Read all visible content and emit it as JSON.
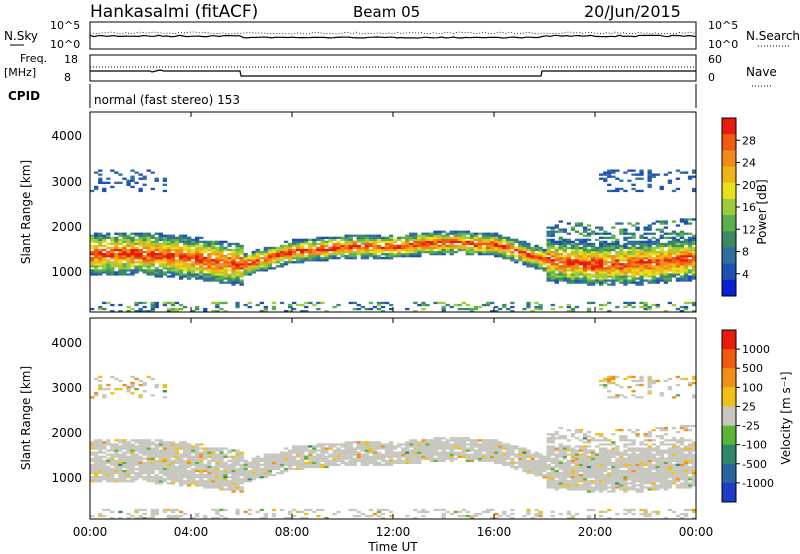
{
  "header": {
    "radar": "Hankasalmi (fitACF)",
    "beam": "Beam 05",
    "date": "20/Jun/2015"
  },
  "top_panels": {
    "nsky_label": "N.Sky",
    "nsky_ticks": [
      "10^5",
      "10^0"
    ],
    "nsearch_label": "N.Search",
    "nsearch_ticks": [
      "10^5",
      "10^0"
    ],
    "freq_label": "Freq.",
    "freq_unit": "[MHz]",
    "freq_ticks": [
      "18",
      "8"
    ],
    "nave_label": "Nave",
    "nave_ticks": [
      "60",
      "0"
    ],
    "cpid_label": "CPID",
    "cpid_text": "normal (fast stereo) 153"
  },
  "power_panel": {
    "ylabel": "Slant Range [km]",
    "yticks": [
      "4000",
      "3000",
      "2000",
      "1000"
    ],
    "colorbar_label": "Power [dB]",
    "colorbar_ticks": [
      "28",
      "24",
      "20",
      "16",
      "12",
      "8",
      "4"
    ],
    "colors": [
      "#0a1ed6",
      "#1e4fb4",
      "#2f6e9e",
      "#3c8a62",
      "#5ab04c",
      "#9ccc3c",
      "#e8e018",
      "#f0b418",
      "#f08a18",
      "#f05a10",
      "#e81a0a"
    ]
  },
  "velocity_panel": {
    "ylabel": "Slant Range [km]",
    "yticks": [
      "4000",
      "3000",
      "2000",
      "1000"
    ],
    "colorbar_label": "Velocity [m s⁻¹]",
    "colorbar_ticks": [
      "1000",
      "500",
      "100",
      "25",
      "-25",
      "-100",
      "-500",
      "-1000"
    ],
    "colors": [
      "#1e3cc8",
      "#2a64a0",
      "#30886a",
      "#5ab438",
      "#c8c8c0",
      "#f0c018",
      "#f09018",
      "#f05a10",
      "#e81a0a"
    ]
  },
  "xaxis": {
    "ticks": [
      "00:00",
      "04:00",
      "08:00",
      "12:00",
      "16:00",
      "20:00",
      "00:00"
    ],
    "label": "Time UT"
  },
  "chart_data": [
    {
      "type": "heatmap",
      "title": "Power",
      "xlabel": "Time UT",
      "ylabel": "Slant Range [km]",
      "x_range": [
        "00:00",
        "24:00"
      ],
      "ylim": [
        180,
        4600
      ],
      "colorbar": {
        "label": "Power [dB]",
        "range": [
          0,
          32
        ],
        "ticks": [
          4,
          8,
          12,
          16,
          20,
          24,
          28
        ]
      },
      "band_center_km": {
        "x_hours": [
          0,
          2,
          4,
          6,
          8,
          10,
          12,
          14,
          16,
          18,
          20,
          22,
          24
        ],
        "y": [
          1450,
          1450,
          1350,
          1200,
          1500,
          1600,
          1600,
          1700,
          1650,
          1300,
          1200,
          1250,
          1350
        ]
      }
    },
    {
      "type": "heatmap",
      "title": "Velocity",
      "xlabel": "Time UT",
      "ylabel": "Slant Range [km]",
      "x_range": [
        "00:00",
        "24:00"
      ],
      "ylim": [
        180,
        4600
      ],
      "colorbar": {
        "label": "Velocity [m s-1]",
        "ticks": [
          -1000,
          -500,
          -100,
          -25,
          25,
          100,
          500,
          1000
        ]
      }
    }
  ]
}
